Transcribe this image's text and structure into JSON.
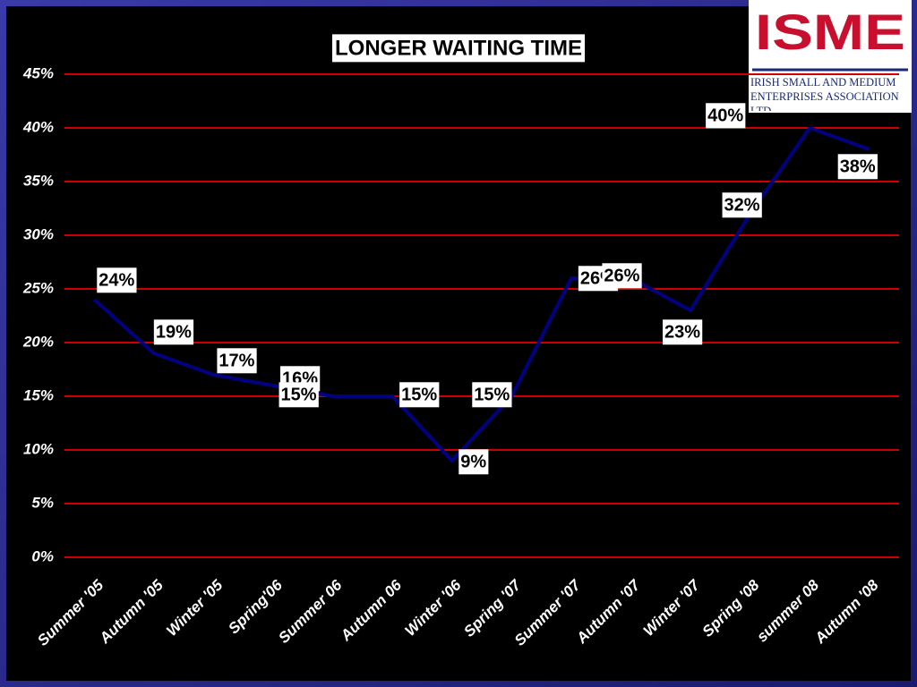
{
  "chart_data": {
    "type": "line",
    "title": "LONGER WAITING TIME",
    "categories": [
      "Summer '05",
      "Autumn '05",
      "Winter '05",
      "Spring'06",
      "Summer 06",
      "Autumn 06",
      "Winter '06",
      "Spring '07",
      "Summer '07",
      "Autumn '07",
      "Winter '07",
      "Spring '08",
      "summer 08",
      "Autumn '08"
    ],
    "series": [
      {
        "name": "Longer waiting time",
        "color": "#000080",
        "values": [
          24,
          19,
          17,
          16,
          15,
          15,
          9,
          15,
          26,
          26,
          23,
          32,
          40,
          38
        ],
        "value_labels": [
          "24%",
          "19%",
          "17%",
          "16%",
          "15%",
          "15%",
          "9%",
          "15%",
          "26%",
          "26%",
          "23%",
          "32%",
          "40%",
          "38%"
        ]
      }
    ],
    "ylim": [
      0,
      45
    ],
    "yticks": [
      {
        "value": 0,
        "label": "0%"
      },
      {
        "value": 5,
        "label": "5%"
      },
      {
        "value": 10,
        "label": "10%"
      },
      {
        "value": 15,
        "label": "15%"
      },
      {
        "value": 20,
        "label": "20%"
      },
      {
        "value": 25,
        "label": "25%"
      },
      {
        "value": 30,
        "label": "30%"
      },
      {
        "value": 35,
        "label": "35%"
      },
      {
        "value": 40,
        "label": "40%"
      },
      {
        "value": 45,
        "label": "45%"
      }
    ],
    "grid": true,
    "grid_color": "#cc0000"
  },
  "logo": {
    "title": "ISME",
    "subtitle": "IRISH SMALL AND MEDIUM ENTERPRISES ASSOCIATION LTD"
  }
}
